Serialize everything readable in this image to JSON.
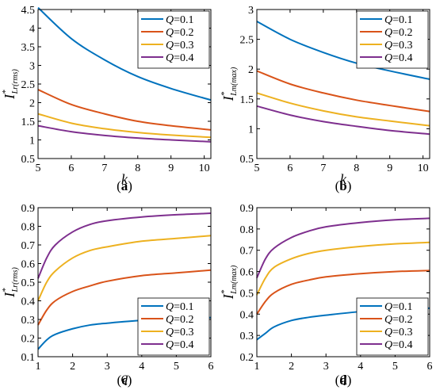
{
  "chart_data": [
    {
      "type": "line",
      "panel_label": "(a)",
      "xlabel": "k",
      "ylabel_main": "I",
      "ylabel_sup": "*",
      "ylabel_sub": "Lr(rms)",
      "xlim": [
        5,
        10.2
      ],
      "ylim": [
        0.5,
        4.5
      ],
      "xticks": [
        5,
        6,
        7,
        8,
        9,
        10
      ],
      "yticks": [
        0.5,
        1,
        1.5,
        2,
        2.5,
        3,
        3.5,
        4,
        4.5
      ],
      "legend_position": "top-right",
      "x": [
        5,
        6,
        7,
        8,
        9,
        10.2
      ],
      "series": [
        {
          "name": "Q=0.1",
          "color": "#0072BD",
          "values": [
            4.55,
            3.72,
            3.15,
            2.7,
            2.38,
            2.07
          ]
        },
        {
          "name": "Q=0.2",
          "color": "#D95319",
          "values": [
            2.35,
            1.95,
            1.7,
            1.5,
            1.38,
            1.27
          ]
        },
        {
          "name": "Q=0.3",
          "color": "#EDB120",
          "values": [
            1.7,
            1.45,
            1.3,
            1.2,
            1.13,
            1.07
          ]
        },
        {
          "name": "Q=0.4",
          "color": "#7E2F8E",
          "values": [
            1.38,
            1.22,
            1.12,
            1.05,
            1.0,
            0.95
          ]
        }
      ]
    },
    {
      "type": "line",
      "panel_label": "(b)",
      "xlabel": "k",
      "ylabel_main": "I",
      "ylabel_sup": "*",
      "ylabel_sub": "Lm(max)",
      "xlim": [
        5,
        10.2
      ],
      "ylim": [
        0.5,
        3
      ],
      "xticks": [
        5,
        6,
        7,
        8,
        9,
        10
      ],
      "yticks": [
        0.5,
        1,
        1.5,
        2,
        2.5,
        3
      ],
      "legend_position": "top-right",
      "x": [
        5,
        6,
        7,
        8,
        9,
        10.2
      ],
      "series": [
        {
          "name": "Q=0.1",
          "color": "#0072BD",
          "values": [
            2.8,
            2.5,
            2.28,
            2.1,
            1.97,
            1.83
          ]
        },
        {
          "name": "Q=0.2",
          "color": "#D95319",
          "values": [
            1.97,
            1.75,
            1.6,
            1.48,
            1.39,
            1.29
          ]
        },
        {
          "name": "Q=0.3",
          "color": "#EDB120",
          "values": [
            1.6,
            1.43,
            1.3,
            1.2,
            1.13,
            1.05
          ]
        },
        {
          "name": "Q=0.4",
          "color": "#7E2F8E",
          "values": [
            1.38,
            1.23,
            1.12,
            1.04,
            0.97,
            0.91
          ]
        }
      ]
    },
    {
      "type": "line",
      "panel_label": "(c)",
      "xlabel": "q",
      "ylabel_main": "I",
      "ylabel_sup": "*",
      "ylabel_sub": "Lr(rms)",
      "xlim": [
        1,
        6
      ],
      "ylim": [
        0.1,
        0.9
      ],
      "xticks": [
        1,
        2,
        3,
        4,
        5,
        6
      ],
      "yticks": [
        0.1,
        0.2,
        0.3,
        0.4,
        0.5,
        0.6,
        0.7,
        0.8,
        0.9
      ],
      "legend_position": "bottom-right",
      "x": [
        1,
        1.25,
        1.5,
        2,
        2.5,
        3,
        4,
        5,
        6
      ],
      "series": [
        {
          "name": "Q=0.1",
          "color": "#0072BD",
          "values": [
            0.14,
            0.19,
            0.22,
            0.25,
            0.27,
            0.28,
            0.295,
            0.302,
            0.31
          ]
        },
        {
          "name": "Q=0.2",
          "color": "#D95319",
          "values": [
            0.27,
            0.35,
            0.4,
            0.45,
            0.48,
            0.505,
            0.535,
            0.55,
            0.565
          ]
        },
        {
          "name": "Q=0.3",
          "color": "#EDB120",
          "values": [
            0.4,
            0.5,
            0.56,
            0.63,
            0.67,
            0.69,
            0.72,
            0.735,
            0.75
          ]
        },
        {
          "name": "Q=0.4",
          "color": "#7E2F8E",
          "values": [
            0.52,
            0.63,
            0.7,
            0.77,
            0.81,
            0.83,
            0.85,
            0.862,
            0.87
          ]
        }
      ]
    },
    {
      "type": "line",
      "panel_label": "(d)",
      "xlabel": "q",
      "ylabel_main": "I",
      "ylabel_sup": "*",
      "ylabel_sub": "Lm(max)",
      "xlim": [
        1,
        6
      ],
      "ylim": [
        0.2,
        0.9
      ],
      "xticks": [
        1,
        2,
        3,
        4,
        5,
        6
      ],
      "yticks": [
        0.2,
        0.3,
        0.4,
        0.5,
        0.6,
        0.7,
        0.8,
        0.9
      ],
      "legend_position": "bottom-right",
      "x": [
        1,
        1.25,
        1.5,
        2,
        2.5,
        3,
        4,
        5,
        6
      ],
      "series": [
        {
          "name": "Q=0.1",
          "color": "#0072BD",
          "values": [
            0.28,
            0.31,
            0.34,
            0.37,
            0.385,
            0.395,
            0.412,
            0.422,
            0.428
          ]
        },
        {
          "name": "Q=0.2",
          "color": "#D95319",
          "values": [
            0.4,
            0.46,
            0.5,
            0.54,
            0.56,
            0.575,
            0.59,
            0.6,
            0.605
          ]
        },
        {
          "name": "Q=0.3",
          "color": "#EDB120",
          "values": [
            0.49,
            0.57,
            0.62,
            0.66,
            0.685,
            0.7,
            0.718,
            0.73,
            0.737
          ]
        },
        {
          "name": "Q=0.4",
          "color": "#7E2F8E",
          "values": [
            0.57,
            0.66,
            0.71,
            0.76,
            0.79,
            0.81,
            0.83,
            0.843,
            0.85
          ]
        }
      ]
    }
  ]
}
